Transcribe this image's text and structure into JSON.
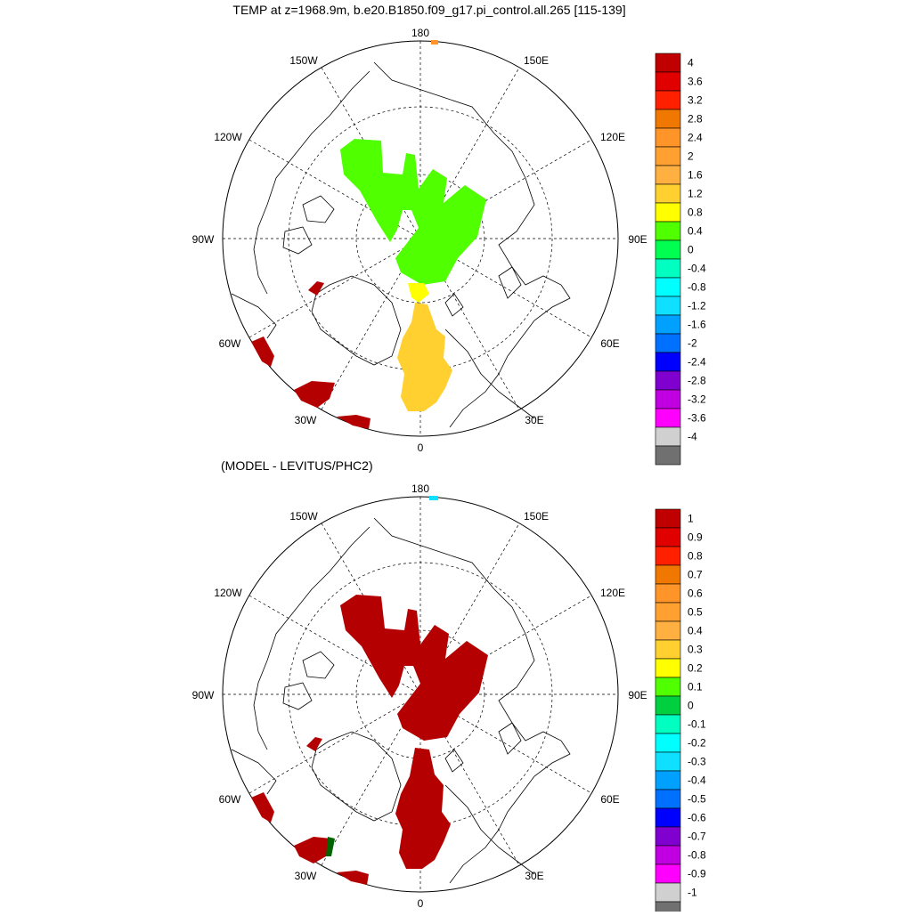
{
  "top_panel": {
    "title": "TEMP at z=1968.9m, b.e20.B1850.f09_g17.pi_control.all.265 [115-139]",
    "longitude_labels": {
      "lon_180": "180",
      "lon_150w": "150W",
      "lon_150e": "150E",
      "lon_120w": "120W",
      "lon_120e": "120E",
      "lon_90w": "90W",
      "lon_90e": "90E",
      "lon_60w": "60W",
      "lon_60e": "60E",
      "lon_30w": "30W",
      "lon_30e": "30E",
      "lon_0": "0"
    },
    "colorbar": {
      "labels": [
        "4",
        "3.6",
        "3.2",
        "2.8",
        "2.4",
        "2",
        "1.6",
        "1.2",
        "0.8",
        "0.4",
        "0",
        "-0.4",
        "-0.8",
        "-1.2",
        "-1.6",
        "-2",
        "-2.4",
        "-2.8",
        "-3.2",
        "-3.6",
        "-4"
      ],
      "colors": [
        "#c00000",
        "#e00000",
        "#ff2000",
        "#f07800",
        "#ff9428",
        "#ffa030",
        "#ffb040",
        "#ffd030",
        "#ffff00",
        "#50ff00",
        "#00ff50",
        "#00ffc0",
        "#00ffff",
        "#10e0ff",
        "#00a0ff",
        "#0070ff",
        "#0000ff",
        "#8000d0",
        "#c000e0",
        "#ff00ff",
        "#d0d0d0",
        "#707070"
      ]
    },
    "field_colors": {
      "green": "#50ff00",
      "yellow": "#ffff00",
      "gold": "#ffd030",
      "dark_red": "#b40000",
      "orange": "#ff9428"
    }
  },
  "bottom_panel": {
    "title": "(MODEL - LEVITUS/PHC2)",
    "longitude_labels": {
      "lon_180": "180",
      "lon_150w": "150W",
      "lon_150e": "150E",
      "lon_120w": "120W",
      "lon_120e": "120E",
      "lon_90w": "90W",
      "lon_90e": "90E",
      "lon_60w": "60W",
      "lon_60e": "60E",
      "lon_30w": "30W",
      "lon_30e": "30E",
      "lon_0": "0"
    },
    "colorbar": {
      "labels": [
        "1",
        "0.9",
        "0.8",
        "0.7",
        "0.6",
        "0.5",
        "0.4",
        "0.3",
        "0.2",
        "0.1",
        "0",
        "-0.1",
        "-0.2",
        "-0.3",
        "-0.4",
        "-0.5",
        "-0.6",
        "-0.7",
        "-0.8",
        "-0.9",
        "-1"
      ],
      "colors": [
        "#c00000",
        "#e00000",
        "#ff2000",
        "#f07800",
        "#ff9428",
        "#ffa030",
        "#ffb040",
        "#ffd030",
        "#ffff00",
        "#50ff00",
        "#00d040",
        "#00ffc0",
        "#00ffff",
        "#10e0ff",
        "#00a0ff",
        "#0070ff",
        "#0000ff",
        "#8000d0",
        "#c000e0",
        "#ff00ff",
        "#d0d0d0",
        "#707070"
      ]
    },
    "field_colors": {
      "dark_red": "#b40000",
      "cyan": "#10e0ff",
      "dark_green": "#006400"
    }
  }
}
